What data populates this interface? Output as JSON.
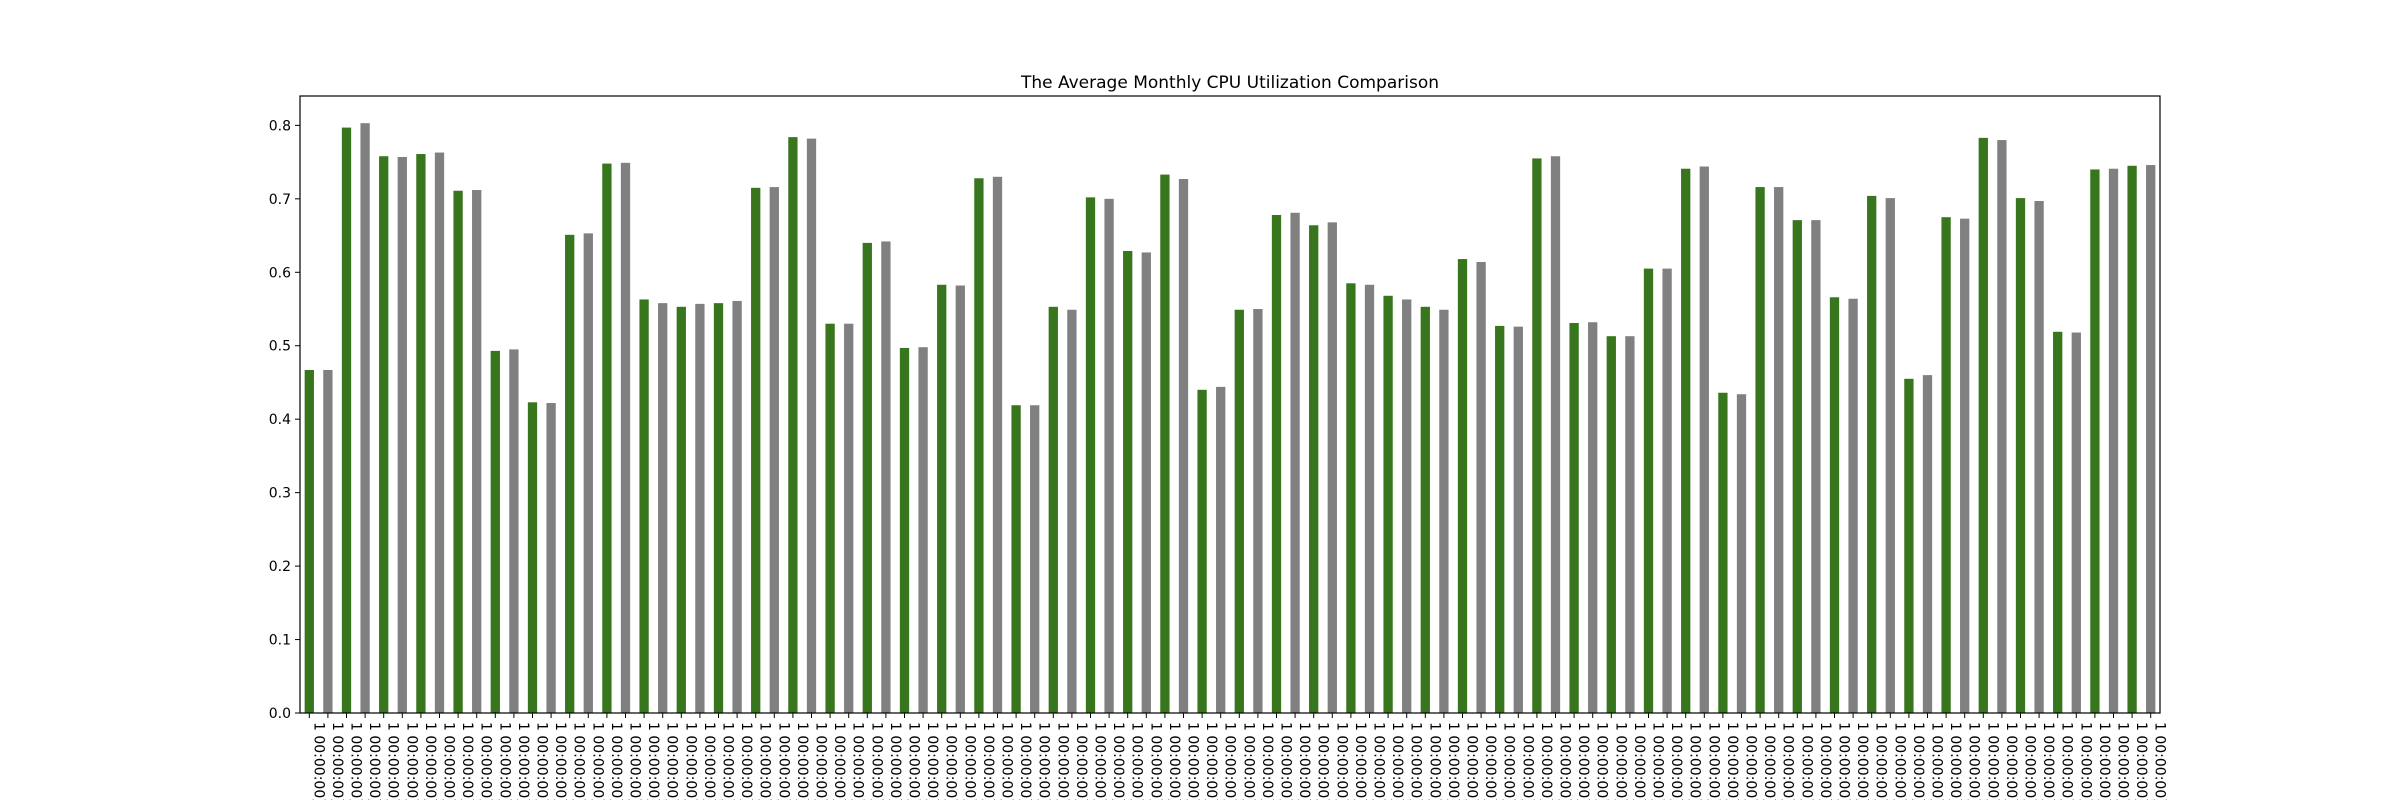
{
  "chart_data": {
    "type": "bar",
    "title": "The Average Monthly CPU Utilization Comparison",
    "xlabel": "",
    "ylabel": "",
    "ylim": [
      0,
      0.84
    ],
    "yticks": [
      "0.0",
      "0.1",
      "0.2",
      "0.3",
      "0.4",
      "0.5",
      "0.6",
      "0.7",
      "0.8"
    ],
    "colors": [
      "#38761d",
      "#808080"
    ],
    "grid": false,
    "legend": "none",
    "x_tick_label": "1 00:00:00)",
    "values": [
      0.467,
      0.467,
      0.797,
      0.803,
      0.758,
      0.757,
      0.761,
      0.763,
      0.711,
      0.712,
      0.493,
      0.495,
      0.423,
      0.422,
      0.651,
      0.653,
      0.748,
      0.749,
      0.563,
      0.558,
      0.553,
      0.557,
      0.558,
      0.561,
      0.715,
      0.716,
      0.784,
      0.782,
      0.53,
      0.53,
      0.64,
      0.642,
      0.497,
      0.498,
      0.583,
      0.582,
      0.728,
      0.73,
      0.419,
      0.419,
      0.553,
      0.549,
      0.702,
      0.7,
      0.629,
      0.627,
      0.733,
      0.727,
      0.44,
      0.444,
      0.549,
      0.55,
      0.678,
      0.681,
      0.664,
      0.668,
      0.585,
      0.583,
      0.568,
      0.563,
      0.553,
      0.549,
      0.618,
      0.614,
      0.527,
      0.526,
      0.755,
      0.758,
      0.531,
      0.532,
      0.513,
      0.513,
      0.605,
      0.605,
      0.741,
      0.744,
      0.436,
      0.434,
      0.716,
      0.716,
      0.671,
      0.671,
      0.566,
      0.564,
      0.704,
      0.701,
      0.455,
      0.46,
      0.675,
      0.673,
      0.783,
      0.78,
      0.701,
      0.697,
      0.519,
      0.518,
      0.74,
      0.741,
      0.745,
      0.746
    ]
  }
}
